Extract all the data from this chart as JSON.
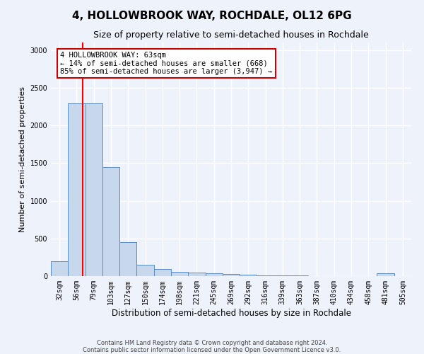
{
  "title": "4, HOLLOWBROOK WAY, ROCHDALE, OL12 6PG",
  "subtitle": "Size of property relative to semi-detached houses in Rochdale",
  "xlabel": "Distribution of semi-detached houses by size in Rochdale",
  "ylabel": "Number of semi-detached properties",
  "categories": [
    "32sqm",
    "56sqm",
    "79sqm",
    "103sqm",
    "127sqm",
    "150sqm",
    "174sqm",
    "198sqm",
    "221sqm",
    "245sqm",
    "269sqm",
    "292sqm",
    "316sqm",
    "339sqm",
    "363sqm",
    "387sqm",
    "410sqm",
    "434sqm",
    "458sqm",
    "481sqm",
    "505sqm"
  ],
  "values": [
    200,
    2290,
    2290,
    1450,
    450,
    155,
    95,
    60,
    45,
    35,
    25,
    20,
    10,
    5,
    5,
    3,
    2,
    2,
    1,
    40,
    1
  ],
  "bar_color": "#c8d8ec",
  "bar_edge_color": "#5b8cc8",
  "background_color": "#eef2fb",
  "grid_color": "#ffffff",
  "red_line_x": 1.35,
  "annotation_text": "4 HOLLOWBROOK WAY: 63sqm\n← 14% of semi-detached houses are smaller (668)\n85% of semi-detached houses are larger (3,947) →",
  "annotation_box_color": "#ffffff",
  "annotation_box_edge": "#cc0000",
  "ylim": [
    0,
    3100
  ],
  "yticks": [
    0,
    500,
    1000,
    1500,
    2000,
    2500,
    3000
  ],
  "footer": "Contains HM Land Registry data © Crown copyright and database right 2024.\nContains public sector information licensed under the Open Government Licence v3.0.",
  "title_fontsize": 11,
  "subtitle_fontsize": 9,
  "xlabel_fontsize": 8.5,
  "ylabel_fontsize": 8,
  "tick_fontsize": 7,
  "annotation_fontsize": 7.5,
  "footer_fontsize": 6
}
